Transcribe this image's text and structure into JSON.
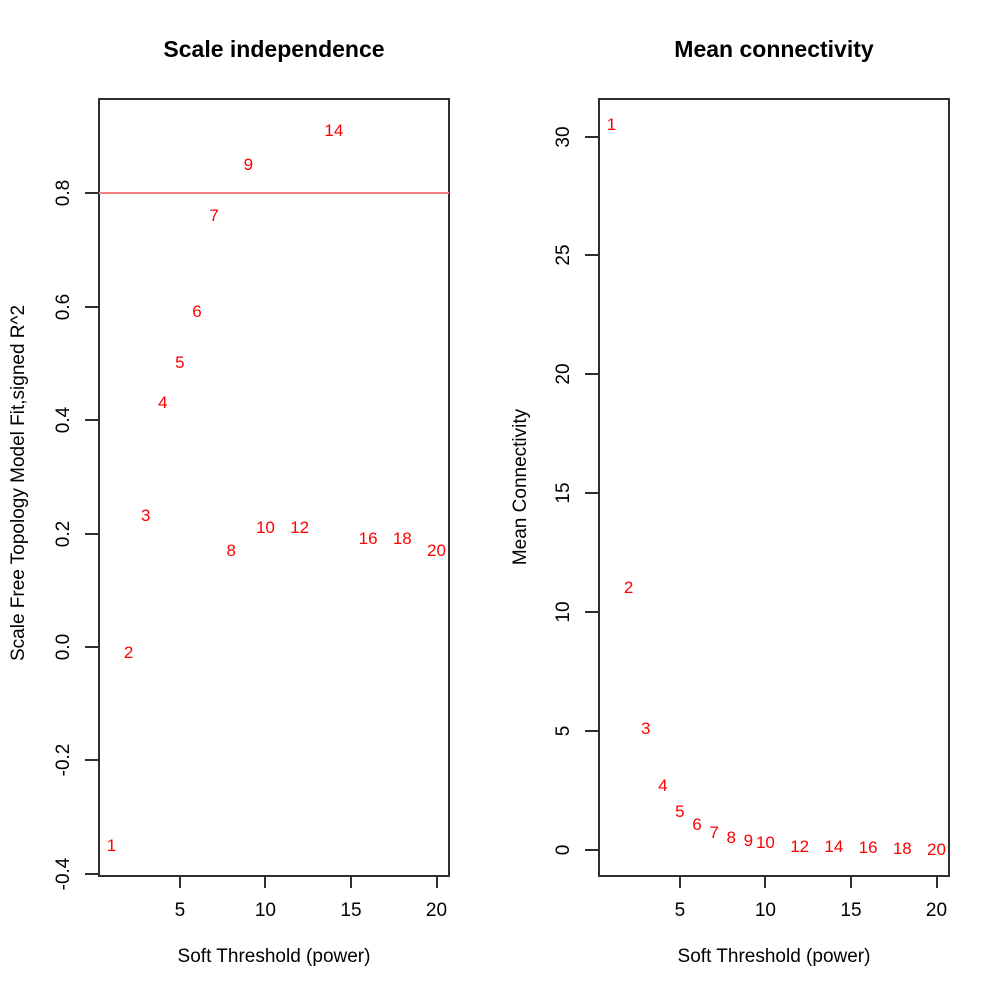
{
  "figure": {
    "background": "#ffffff",
    "axis_color": "#2f2f2f",
    "accent_red": "#ff0000",
    "threshold_line_red": "#f28080"
  },
  "chart_data": [
    {
      "type": "scatter",
      "title": "Scale independence",
      "xlabel": "Soft Threshold (power)",
      "ylabel": "Scale Free Topology Model Fit,signed R^2",
      "point_color": "#ff0000",
      "grid": false,
      "legend": false,
      "xlim": [
        0.27,
        20.73
      ],
      "ylim": [
        -0.402,
        0.966
      ],
      "xtick_values": [
        5,
        10,
        15,
        20
      ],
      "xtick_labels": [
        "5",
        "10",
        "15",
        "20"
      ],
      "ytick_values": [
        -0.4,
        -0.2,
        0.0,
        0.2,
        0.4,
        0.6,
        0.8
      ],
      "ytick_labels": [
        "-0.4",
        "-0.2",
        "0.0",
        "0.2",
        "0.4",
        "0.6",
        "0.8"
      ],
      "hline": {
        "y": 0.8,
        "color": "#f28080"
      },
      "points": [
        {
          "label": "1",
          "x": 1,
          "y": -0.35
        },
        {
          "label": "2",
          "x": 2,
          "y": -0.01
        },
        {
          "label": "3",
          "x": 3,
          "y": 0.23
        },
        {
          "label": "4",
          "x": 4,
          "y": 0.43
        },
        {
          "label": "5",
          "x": 5,
          "y": 0.5
        },
        {
          "label": "6",
          "x": 6,
          "y": 0.59
        },
        {
          "label": "7",
          "x": 7,
          "y": 0.76
        },
        {
          "label": "8",
          "x": 8,
          "y": 0.17
        },
        {
          "label": "9",
          "x": 9,
          "y": 0.85
        },
        {
          "label": "10",
          "x": 10,
          "y": 0.21
        },
        {
          "label": "12",
          "x": 12,
          "y": 0.21
        },
        {
          "label": "14",
          "x": 14,
          "y": 0.91
        },
        {
          "label": "16",
          "x": 16,
          "y": 0.19
        },
        {
          "label": "18",
          "x": 18,
          "y": 0.19
        },
        {
          "label": "20",
          "x": 20,
          "y": 0.17
        }
      ]
    },
    {
      "type": "scatter",
      "title": "Mean connectivity",
      "xlabel": "Soft Threshold (power)",
      "ylabel": "Mean Connectivity",
      "point_color": "#ff0000",
      "grid": false,
      "legend": false,
      "xlim": [
        0.27,
        20.73
      ],
      "ylim": [
        -1.05,
        31.58
      ],
      "xtick_values": [
        5,
        10,
        15,
        20
      ],
      "xtick_labels": [
        "5",
        "10",
        "15",
        "20"
      ],
      "ytick_values": [
        0,
        5,
        10,
        15,
        20,
        25,
        30
      ],
      "ytick_labels": [
        "0",
        "5",
        "10",
        "15",
        "20",
        "25",
        "30"
      ],
      "hline": null,
      "points": [
        {
          "label": "1",
          "x": 1,
          "y": 30.5
        },
        {
          "label": "2",
          "x": 2,
          "y": 11.0
        },
        {
          "label": "3",
          "x": 3,
          "y": 5.1
        },
        {
          "label": "4",
          "x": 4,
          "y": 2.7
        },
        {
          "label": "5",
          "x": 5,
          "y": 1.6
        },
        {
          "label": "6",
          "x": 6,
          "y": 1.05
        },
        {
          "label": "7",
          "x": 7,
          "y": 0.73
        },
        {
          "label": "8",
          "x": 8,
          "y": 0.49
        },
        {
          "label": "9",
          "x": 9,
          "y": 0.38
        },
        {
          "label": "10",
          "x": 10,
          "y": 0.28
        },
        {
          "label": "12",
          "x": 12,
          "y": 0.14
        },
        {
          "label": "14",
          "x": 14,
          "y": 0.11
        },
        {
          "label": "16",
          "x": 16,
          "y": 0.07
        },
        {
          "label": "18",
          "x": 18,
          "y": 0.04
        },
        {
          "label": "20",
          "x": 20,
          "y": 0.02
        }
      ]
    }
  ]
}
